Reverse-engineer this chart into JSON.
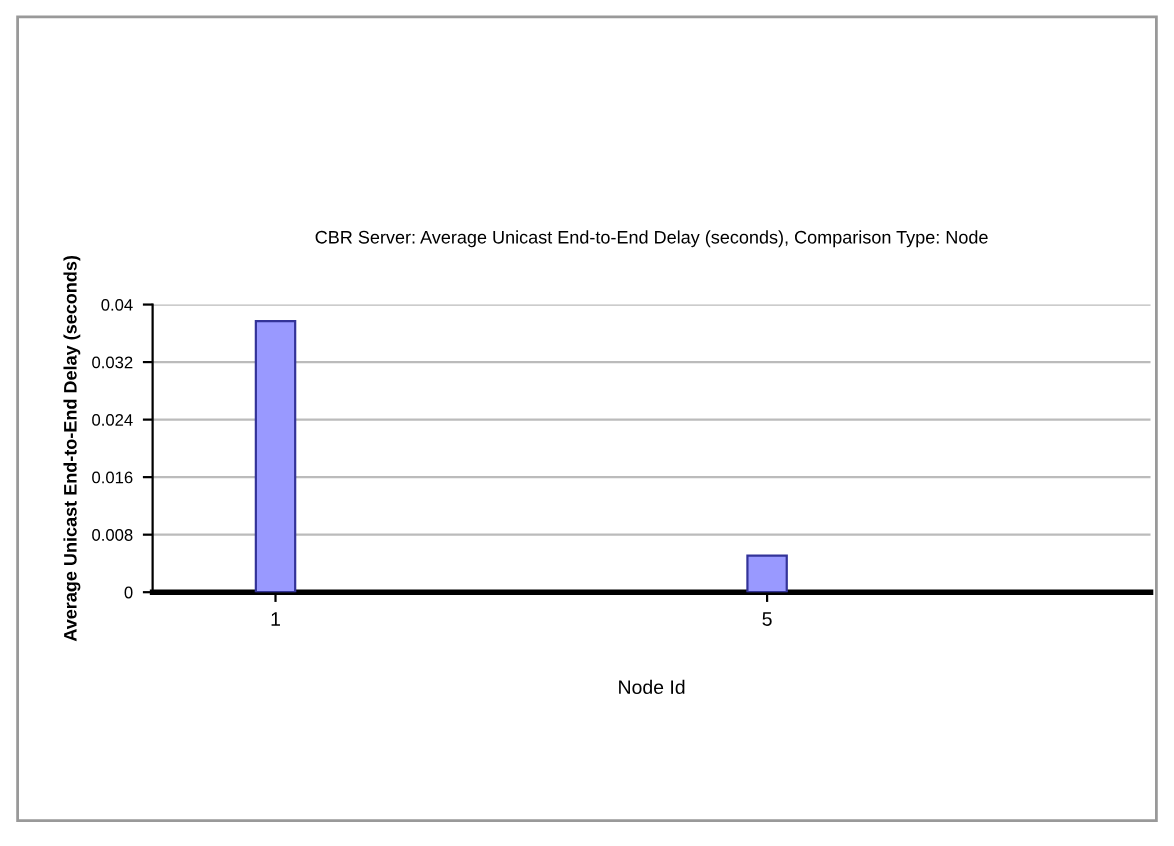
{
  "chart_data": {
    "type": "bar",
    "title": "CBR Server: Average Unicast End-to-End Delay (seconds), Comparison Type: Node",
    "xlabel": "Node Id",
    "ylabel": "Average Unicast End-to-End Delay (seconds)",
    "categories": [
      "1",
      "5"
    ],
    "series": [
      {
        "color": "#9999ff",
        "values": [
          0.0377,
          0.0051
        ]
      }
    ],
    "ylim": [
      0,
      0.04
    ],
    "yticks": [
      0,
      0.008,
      0.016,
      0.024,
      0.032,
      0.04
    ],
    "grid": "y"
  }
}
